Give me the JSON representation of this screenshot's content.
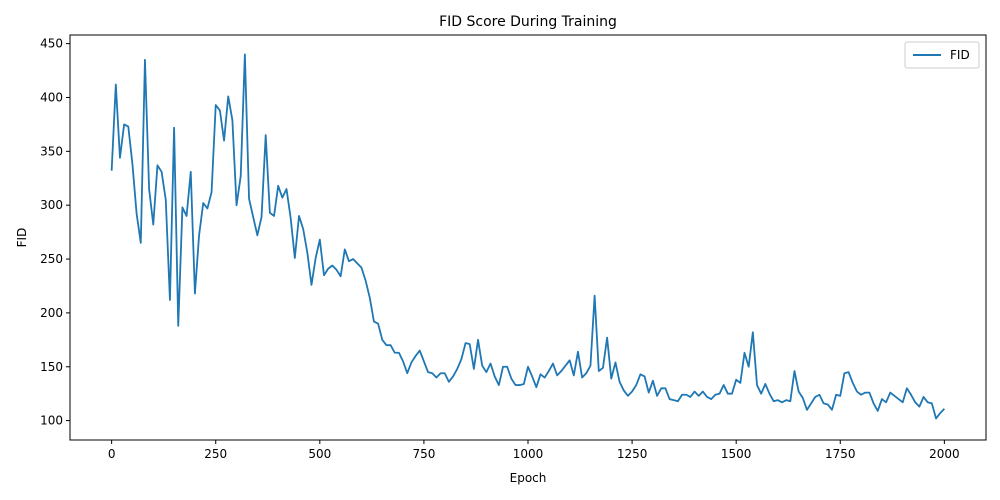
{
  "chart_data": {
    "type": "line",
    "title": "FID Score During Training",
    "xlabel": "Epoch",
    "ylabel": "FID",
    "xlim": [
      -100,
      2100
    ],
    "ylim": [
      82,
      458
    ],
    "xticks": [
      0,
      250,
      500,
      750,
      1000,
      1250,
      1500,
      1750,
      2000
    ],
    "yticks": [
      100,
      150,
      200,
      250,
      300,
      350,
      400,
      450
    ],
    "grid": false,
    "legend": "top-right",
    "series": [
      {
        "name": "FID",
        "color": "#1f77b4",
        "x": [
          0,
          10,
          20,
          30,
          40,
          50,
          60,
          70,
          80,
          90,
          100,
          110,
          120,
          130,
          140,
          150,
          160,
          170,
          180,
          190,
          200,
          210,
          220,
          230,
          240,
          250,
          260,
          270,
          280,
          290,
          300,
          310,
          320,
          330,
          340,
          350,
          360,
          370,
          380,
          390,
          400,
          410,
          420,
          430,
          440,
          450,
          460,
          470,
          480,
          490,
          500,
          510,
          520,
          530,
          540,
          550,
          560,
          570,
          580,
          590,
          600,
          610,
          620,
          630,
          640,
          650,
          660,
          670,
          680,
          690,
          700,
          710,
          720,
          730,
          740,
          750,
          760,
          770,
          780,
          790,
          800,
          810,
          820,
          830,
          840,
          850,
          860,
          870,
          880,
          890,
          900,
          910,
          920,
          930,
          940,
          950,
          960,
          970,
          980,
          990,
          1000,
          1010,
          1020,
          1030,
          1040,
          1050,
          1060,
          1070,
          1080,
          1090,
          1100,
          1110,
          1120,
          1130,
          1140,
          1150,
          1160,
          1170,
          1180,
          1190,
          1200,
          1210,
          1220,
          1230,
          1240,
          1250,
          1260,
          1270,
          1280,
          1290,
          1300,
          1310,
          1320,
          1330,
          1340,
          1350,
          1360,
          1370,
          1380,
          1390,
          1400,
          1410,
          1420,
          1430,
          1440,
          1450,
          1460,
          1470,
          1480,
          1490,
          1500,
          1510,
          1520,
          1530,
          1540,
          1550,
          1560,
          1570,
          1580,
          1590,
          1600,
          1610,
          1620,
          1630,
          1640,
          1650,
          1660,
          1670,
          1680,
          1690,
          1700,
          1710,
          1720,
          1730,
          1740,
          1750,
          1760,
          1770,
          1780,
          1790,
          1800,
          1810,
          1820,
          1830,
          1840,
          1850,
          1860,
          1870,
          1880,
          1890,
          1900,
          1910,
          1920,
          1930,
          1940,
          1950,
          1960,
          1970,
          1980,
          1990,
          2000
        ],
        "values": [
          332,
          412,
          344,
          375,
          373,
          338,
          292,
          265,
          435,
          315,
          282,
          337,
          331,
          305,
          212,
          372,
          188,
          298,
          290,
          331,
          218,
          272,
          302,
          297,
          312,
          393,
          388,
          360,
          401,
          379,
          300,
          327,
          440,
          306,
          289,
          272,
          289,
          365,
          293,
          290,
          318,
          307,
          315,
          288,
          251,
          290,
          278,
          256,
          226,
          251,
          268,
          235,
          241,
          244,
          240,
          234,
          259,
          248,
          250,
          246,
          242,
          230,
          214,
          192,
          190,
          175,
          170,
          170,
          163,
          163,
          155,
          144,
          154,
          160,
          165,
          155,
          145,
          144,
          140,
          144,
          144,
          136,
          141,
          148,
          157,
          172,
          171,
          148,
          175,
          151,
          145,
          153,
          141,
          133,
          150,
          150,
          139,
          133,
          133,
          134,
          150,
          141,
          131,
          143,
          140,
          146,
          153,
          142,
          146,
          151,
          156,
          142,
          164,
          140,
          144,
          151,
          216,
          146,
          149,
          177,
          139,
          154,
          136,
          128,
          123,
          127,
          133,
          143,
          141,
          126,
          137,
          123,
          130,
          130,
          120,
          119,
          118,
          124,
          124,
          122,
          127,
          123,
          127,
          122,
          120,
          124,
          125,
          133,
          125,
          125,
          138,
          135,
          163,
          150,
          182,
          133,
          125,
          134,
          125,
          118,
          119,
          117,
          119,
          118,
          146,
          127,
          121,
          110,
          116,
          122,
          124,
          116,
          115,
          110,
          124,
          123,
          144,
          145,
          135,
          127,
          124,
          126,
          126,
          116,
          109,
          120,
          117,
          126,
          123,
          120,
          117,
          130,
          124,
          117,
          113,
          122,
          117,
          116,
          102,
          107,
          111
        ]
      }
    ]
  }
}
